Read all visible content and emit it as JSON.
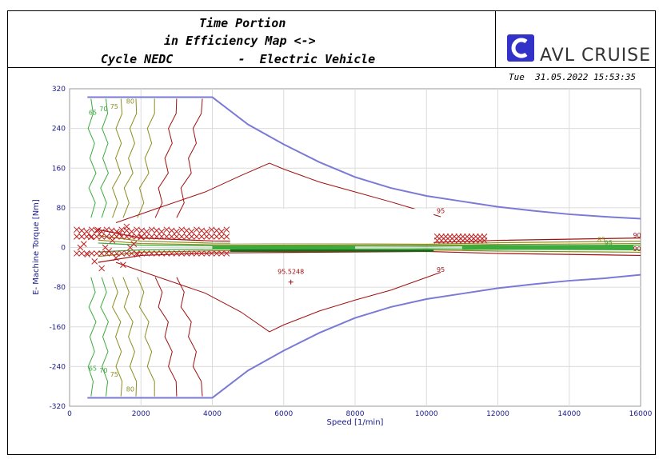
{
  "header": {
    "title_line1": "Time Portion",
    "title_line2": "in Efficiency Map <->",
    "title_line3": "Cycle NEDC         -  Electric Vehicle",
    "logo_text": "AVL CRUISE",
    "timestamp": "Tue  31.05.2022 15:53:35"
  },
  "colors": {
    "envelope": "#7a7ad6",
    "contour_dark": "#a01010",
    "contour_olive": "#8c8c1e",
    "contour_green": "#3caa3c",
    "marker": "#c02020",
    "axis_text": "#1a1a8c"
  },
  "chart_data": {
    "type": "contour",
    "title": "",
    "xlabel": "Speed [1/min]",
    "ylabel": "E- Machine Torque [Nm]",
    "xlim": [
      0,
      16000
    ],
    "ylim": [
      -320,
      320
    ],
    "xticks": [
      "0",
      "2000",
      "4000",
      "6000",
      "8000",
      "10000",
      "12000",
      "14000",
      "16000"
    ],
    "yticks": [
      "320",
      "240",
      "160",
      "80",
      "0",
      "-80",
      "-160",
      "-240",
      "-320"
    ],
    "grid": true,
    "envelope": {
      "upper": [
        [
          500,
          303
        ],
        [
          4000,
          303
        ],
        [
          5000,
          248
        ],
        [
          6000,
          208
        ],
        [
          7000,
          172
        ],
        [
          8000,
          142
        ],
        [
          9000,
          120
        ],
        [
          10000,
          104
        ],
        [
          11000,
          93
        ],
        [
          12000,
          82
        ],
        [
          13000,
          74
        ],
        [
          14000,
          67
        ],
        [
          15000,
          62
        ],
        [
          16000,
          58
        ]
      ],
      "lower": [
        [
          500,
          -303
        ],
        [
          4000,
          -303
        ],
        [
          5000,
          -248
        ],
        [
          6000,
          -208
        ],
        [
          7000,
          -172
        ],
        [
          8000,
          -142
        ],
        [
          9000,
          -120
        ],
        [
          10000,
          -104
        ],
        [
          11000,
          -93
        ],
        [
          12000,
          -82
        ],
        [
          13000,
          -74
        ],
        [
          14000,
          -67
        ],
        [
          15000,
          -62
        ],
        [
          16000,
          -55
        ]
      ]
    },
    "contour_labels": [
      {
        "text": "65",
        "x": 650,
        "y": 268,
        "color": "green"
      },
      {
        "text": "70",
        "x": 950,
        "y": 275,
        "color": "green"
      },
      {
        "text": "75",
        "x": 1250,
        "y": 280,
        "color": "olive"
      },
      {
        "text": "80",
        "x": 1700,
        "y": 290,
        "color": "olive"
      },
      {
        "text": "65",
        "x": 650,
        "y": -248,
        "color": "green"
      },
      {
        "text": "70",
        "x": 950,
        "y": -252,
        "color": "green"
      },
      {
        "text": "75",
        "x": 1250,
        "y": -260,
        "color": "olive"
      },
      {
        "text": "80",
        "x": 1700,
        "y": -290,
        "color": "olive"
      },
      {
        "text": "95",
        "x": 10400,
        "y": 69,
        "color": "dark"
      },
      {
        "text": "95",
        "x": 10400,
        "y": -49,
        "color": "dark"
      },
      {
        "text": "85",
        "x": 14900,
        "y": 11,
        "color": "olive"
      },
      {
        "text": "90",
        "x": 15900,
        "y": 20,
        "color": "dark"
      },
      {
        "text": "95",
        "x": 15100,
        "y": 5,
        "color": "green"
      },
      {
        "text": "90",
        "x": 15900,
        "y": -7,
        "color": "dark"
      }
    ],
    "max_efficiency": {
      "value": "95.5248",
      "x": 6200,
      "y": -60
    }
  }
}
